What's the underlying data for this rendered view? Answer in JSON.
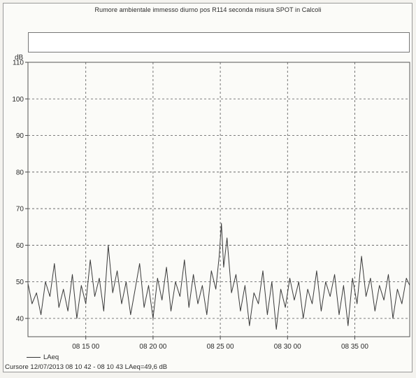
{
  "chart_data": {
    "type": "line",
    "title": "Rumore ambientale immesso diurno pos R114 seconda misura SPOT in Calcoli",
    "ylabel": "dB",
    "ylim": [
      35,
      110
    ],
    "xlim": [
      "08:10:42",
      "08:39:05"
    ],
    "y_ticks": [
      {
        "value": 40,
        "label": "40"
      },
      {
        "value": 50,
        "label": "50"
      },
      {
        "value": 60,
        "label": "60"
      },
      {
        "value": 70,
        "label": "70"
      },
      {
        "value": 80,
        "label": "80"
      },
      {
        "value": 90,
        "label": "90"
      },
      {
        "value": 100,
        "label": "100"
      },
      {
        "value": 110,
        "label": "110"
      }
    ],
    "x_ticks": [
      {
        "value": "08:15:00",
        "label": "08 15 00"
      },
      {
        "value": "08:20:00",
        "label": "08 20 00"
      },
      {
        "value": "08:25:00",
        "label": "08 25 00"
      },
      {
        "value": "08:30:00",
        "label": "08 30 00"
      },
      {
        "value": "08:35:00",
        "label": "08 35 00"
      }
    ],
    "grid": true,
    "legend": {
      "placement": "bottom-left",
      "entries": [
        "LAeq"
      ]
    },
    "series": [
      {
        "name": "LAeq",
        "color": "#3a3a3a",
        "points": [
          [
            "08:10:42",
            49.6
          ],
          [
            "08:11:00",
            44
          ],
          [
            "08:11:20",
            47
          ],
          [
            "08:11:40",
            41
          ],
          [
            "08:12:00",
            50
          ],
          [
            "08:12:20",
            46
          ],
          [
            "08:12:40",
            55
          ],
          [
            "08:13:00",
            43
          ],
          [
            "08:13:20",
            48
          ],
          [
            "08:13:40",
            42
          ],
          [
            "08:14:00",
            52
          ],
          [
            "08:14:20",
            40
          ],
          [
            "08:14:40",
            49
          ],
          [
            "08:15:00",
            44
          ],
          [
            "08:15:20",
            56
          ],
          [
            "08:15:40",
            46
          ],
          [
            "08:16:00",
            51
          ],
          [
            "08:16:20",
            42
          ],
          [
            "08:16:40",
            60
          ],
          [
            "08:17:00",
            47
          ],
          [
            "08:17:20",
            53
          ],
          [
            "08:17:40",
            44
          ],
          [
            "08:18:00",
            50
          ],
          [
            "08:18:20",
            41
          ],
          [
            "08:18:40",
            48
          ],
          [
            "08:19:00",
            55
          ],
          [
            "08:19:20",
            43
          ],
          [
            "08:19:40",
            49
          ],
          [
            "08:20:00",
            40
          ],
          [
            "08:20:20",
            51
          ],
          [
            "08:20:40",
            45
          ],
          [
            "08:21:00",
            54
          ],
          [
            "08:21:20",
            42
          ],
          [
            "08:21:40",
            50
          ],
          [
            "08:22:00",
            46
          ],
          [
            "08:22:20",
            56
          ],
          [
            "08:22:40",
            43
          ],
          [
            "08:23:00",
            52
          ],
          [
            "08:23:20",
            44
          ],
          [
            "08:23:40",
            49
          ],
          [
            "08:24:00",
            41
          ],
          [
            "08:24:20",
            53
          ],
          [
            "08:24:40",
            48
          ],
          [
            "08:24:55",
            57
          ],
          [
            "08:25:05",
            66
          ],
          [
            "08:25:15",
            54
          ],
          [
            "08:25:30",
            62
          ],
          [
            "08:25:50",
            47
          ],
          [
            "08:26:10",
            52
          ],
          [
            "08:26:30",
            42
          ],
          [
            "08:26:50",
            49
          ],
          [
            "08:27:10",
            38
          ],
          [
            "08:27:30",
            47
          ],
          [
            "08:27:50",
            44
          ],
          [
            "08:28:10",
            53
          ],
          [
            "08:28:30",
            41
          ],
          [
            "08:28:50",
            50
          ],
          [
            "08:29:10",
            37
          ],
          [
            "08:29:30",
            48
          ],
          [
            "08:29:50",
            43
          ],
          [
            "08:30:10",
            51
          ],
          [
            "08:30:30",
            45
          ],
          [
            "08:30:50",
            50
          ],
          [
            "08:31:10",
            40
          ],
          [
            "08:31:30",
            48
          ],
          [
            "08:31:50",
            44
          ],
          [
            "08:32:10",
            53
          ],
          [
            "08:32:30",
            42
          ],
          [
            "08:32:50",
            50
          ],
          [
            "08:33:10",
            46
          ],
          [
            "08:33:30",
            52
          ],
          [
            "08:33:50",
            41
          ],
          [
            "08:34:10",
            49
          ],
          [
            "08:34:30",
            38
          ],
          [
            "08:34:50",
            51
          ],
          [
            "08:35:10",
            44
          ],
          [
            "08:35:30",
            57
          ],
          [
            "08:35:50",
            46
          ],
          [
            "08:36:10",
            51
          ],
          [
            "08:36:30",
            42
          ],
          [
            "08:36:50",
            49
          ],
          [
            "08:37:10",
            45
          ],
          [
            "08:37:30",
            52
          ],
          [
            "08:37:50",
            40
          ],
          [
            "08:38:10",
            48
          ],
          [
            "08:38:30",
            44
          ],
          [
            "08:38:50",
            51
          ],
          [
            "08:39:05",
            49
          ]
        ]
      }
    ]
  },
  "cursor": {
    "text": "Cursore  12/07/2013 08 10 42 - 08 10 43  LAeq=49,6 dB"
  }
}
